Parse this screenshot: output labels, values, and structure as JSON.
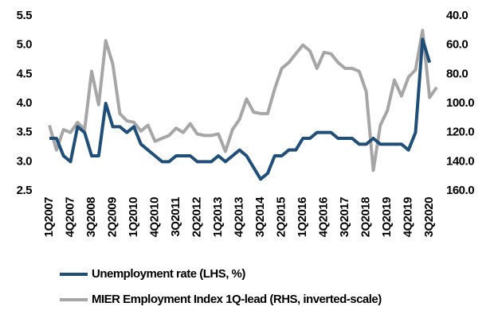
{
  "chart_data": {
    "type": "line",
    "categories": [
      "1Q2007",
      null,
      null,
      "4Q2007",
      null,
      null,
      "3Q2008",
      null,
      null,
      "2Q2009",
      null,
      null,
      "1Q2010",
      null,
      null,
      "4Q2010",
      null,
      null,
      "3Q2011",
      null,
      null,
      "2Q2012",
      null,
      null,
      "1Q2013",
      null,
      null,
      "4Q2013",
      null,
      null,
      "3Q2014",
      null,
      null,
      "2Q2015",
      null,
      null,
      "1Q2016",
      null,
      null,
      "4Q2016",
      null,
      null,
      "3Q2017",
      null,
      null,
      "2Q2018",
      null,
      null,
      "1Q2019",
      null,
      null,
      "4Q2019",
      null,
      null,
      "3Q2020",
      null
    ],
    "series": [
      {
        "name": "Unemployment rate (LHS, %)",
        "color": "#1f4e79",
        "axis": "y",
        "values": [
          3.4,
          3.4,
          3.1,
          3.0,
          3.6,
          3.5,
          3.1,
          3.1,
          4.0,
          3.6,
          3.6,
          3.5,
          3.6,
          3.3,
          3.2,
          3.1,
          3.0,
          3.0,
          3.1,
          3.1,
          3.1,
          3.0,
          3.0,
          3.0,
          3.1,
          3.0,
          3.1,
          3.2,
          3.1,
          2.9,
          2.7,
          2.8,
          3.1,
          3.1,
          3.2,
          3.2,
          3.4,
          3.4,
          3.5,
          3.5,
          3.5,
          3.4,
          3.4,
          3.4,
          3.3,
          3.3,
          3.4,
          3.3,
          3.3,
          3.3,
          3.3,
          3.2,
          3.5,
          5.1,
          4.7,
          null
        ]
      },
      {
        "name": "MIER Employment Index 1Q-lead (RHS, inverted-scale)",
        "color": "#a6a6a6",
        "axis": "y2",
        "values": [
          115,
          132,
          118,
          120,
          113,
          118,
          78,
          101,
          57,
          73,
          107,
          112,
          113,
          119,
          115,
          126,
          124,
          122,
          117,
          120,
          114,
          121,
          122,
          122,
          121,
          133,
          118,
          111,
          97,
          106,
          107,
          107,
          90,
          76,
          72,
          66,
          60,
          64,
          76,
          65,
          66,
          72,
          76,
          76,
          78,
          92,
          146,
          115,
          105,
          84,
          95,
          82,
          77,
          50,
          96,
          89
        ]
      }
    ],
    "ylim": [
      2.5,
      5.5
    ],
    "yticks": [
      2.5,
      {
        "value": 3,
        "label": "3.0"
      },
      3.5,
      {
        "value": 4,
        "label": "4.0"
      },
      4.5,
      {
        "value": 5,
        "label": "5.0"
      },
      5.5
    ],
    "y2lim": [
      40,
      160
    ],
    "y2_inverted": true,
    "y2ticks": [
      {
        "value": 40,
        "label": "40.0"
      },
      {
        "value": 60,
        "label": "60.0"
      },
      {
        "value": 80,
        "label": "80.0"
      },
      {
        "value": 100,
        "label": "100.0"
      },
      {
        "value": 120,
        "label": "120.0"
      },
      {
        "value": 140,
        "label": "140.0"
      },
      {
        "value": 160,
        "label": "160.0"
      }
    ],
    "grid": false,
    "legend": "bottom"
  }
}
